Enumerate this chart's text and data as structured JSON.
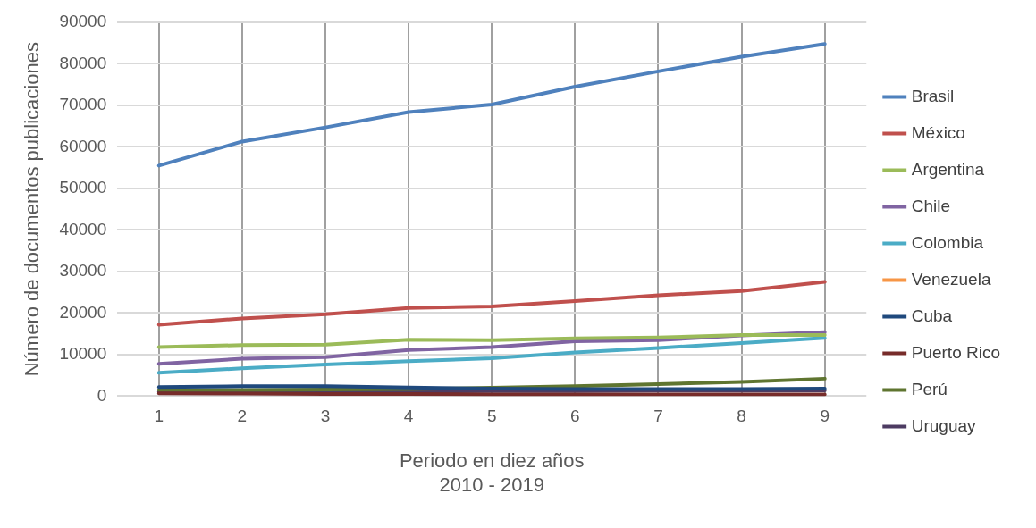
{
  "chart_data": {
    "type": "line",
    "xlabel": "Periodo en diez años\n2010 - 2019",
    "ylabel": "Número de documentos publicaciones",
    "categories": [
      "1",
      "2",
      "3",
      "4",
      "5",
      "6",
      "7",
      "8",
      "9"
    ],
    "series": [
      {
        "name": "Brasil",
        "color": "#4f81bd",
        "values": [
          55500,
          61300,
          64700,
          68400,
          70200,
          74500,
          78200,
          81700,
          84800
        ]
      },
      {
        "name": "México",
        "color": "#c0504d",
        "values": [
          17200,
          18700,
          19700,
          21200,
          21600,
          22900,
          24300,
          25300,
          27500
        ]
      },
      {
        "name": "Argentina",
        "color": "#9bbb59",
        "values": [
          11800,
          12300,
          12400,
          13600,
          13500,
          13900,
          14100,
          14700,
          14700
        ]
      },
      {
        "name": "Chile",
        "color": "#8064a2",
        "values": [
          7800,
          9000,
          9400,
          11100,
          11800,
          13200,
          13500,
          14600,
          15400
        ]
      },
      {
        "name": "Colombia",
        "color": "#4bacc6",
        "values": [
          5600,
          6700,
          7600,
          8400,
          9100,
          10500,
          11600,
          12800,
          14000
        ]
      },
      {
        "name": "Venezuela",
        "color": "#f79646",
        "values": [
          null,
          null,
          null,
          null,
          null,
          null,
          null,
          null,
          null
        ]
      },
      {
        "name": "Cuba",
        "color": "#1f497d",
        "values": [
          2200,
          2400,
          2400,
          2100,
          1800,
          1700,
          1700,
          1700,
          1800
        ]
      },
      {
        "name": "Puerto Rico",
        "color": "#772c2a",
        "values": [
          700,
          600,
          500,
          500,
          400,
          400,
          400,
          400,
          400
        ]
      },
      {
        "name": "Perú",
        "color": "#5f7530",
        "values": [
          1500,
          1500,
          1600,
          1700,
          2000,
          2400,
          2900,
          3400,
          4200
        ]
      },
      {
        "name": "Uruguay",
        "color": "#4d3b62",
        "values": [
          1000,
          1000,
          1000,
          1100,
          1200,
          1200,
          1300,
          1300,
          1400
        ]
      }
    ],
    "ylim": [
      0,
      90000
    ],
    "yticks": [
      0,
      10000,
      20000,
      30000,
      40000,
      50000,
      60000,
      70000,
      80000,
      90000
    ],
    "grid": true,
    "legend": "right",
    "marker": "none",
    "line_style": "solid"
  }
}
